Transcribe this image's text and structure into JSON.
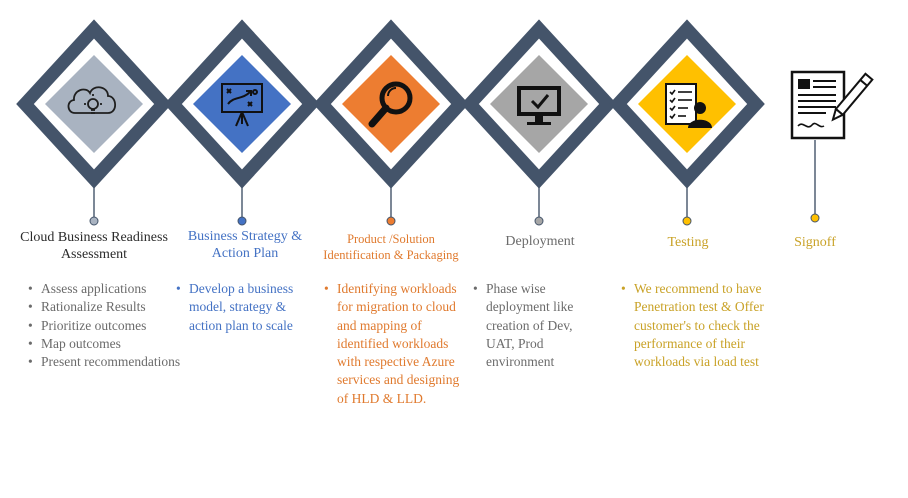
{
  "colors": {
    "frame": "#44546a",
    "gray": "#a9b3c1",
    "blue": "#4472c4",
    "orange": "#ed7d31",
    "midgray": "#a6a6a6",
    "gold": "#ffc000",
    "text_dark": "#2b2b2b",
    "text_gray": "#6b6b6b",
    "text_blue": "#4472c4",
    "text_orange": "#e07a2e",
    "text_gold": "#c9a227"
  },
  "stages": [
    {
      "title": "Cloud Business Readiness Assessment",
      "icon": "cloud-lightbulb-icon",
      "bullets": [
        "Assess applications",
        "Rationalize Results",
        "Prioritize outcomes",
        "Map outcomes",
        "Present recommendations"
      ]
    },
    {
      "title": "Business Strategy & Action Plan",
      "icon": "strategy-board-icon",
      "bullets": [
        "Develop a business model, strategy & action plan to scale"
      ]
    },
    {
      "title": "Product /Solution Identification & Packaging",
      "icon": "magnifier-icon",
      "bullets": [
        "Identifying workloads for migration to cloud and mapping of identified workloads with respective Azure services and designing of HLD & LLD."
      ]
    },
    {
      "title": "Deployment",
      "icon": "monitor-check-icon",
      "bullets": [
        "Phase wise deployment like creation of Dev, UAT, Prod environment"
      ]
    },
    {
      "title": "Testing",
      "icon": "checklist-person-icon",
      "bullets": [
        "We recommend to have Penetration test & Offer customer's to check the performance of their workloads via load test"
      ]
    },
    {
      "title": "Signoff",
      "icon": "document-pen-icon",
      "bullets": []
    }
  ]
}
